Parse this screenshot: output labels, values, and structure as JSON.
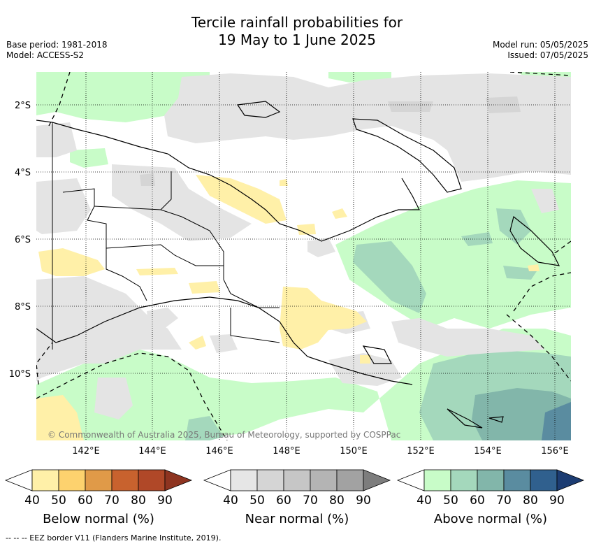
{
  "title_line1": "Tercile rainfall probabilities for",
  "title_line2": "19 May to 1 June 2025",
  "base_period": "Base period: 1981-2018",
  "model": "Model: ACCESS-S2",
  "model_run": "Model run: 05/05/2025",
  "issued": "Issued: 07/05/2025",
  "copyright": "© Commonwealth of Australia 2025, Bureau of Meteorology, supported by COSPPac",
  "lat_labels": [
    "2°S",
    "4°S",
    "6°S",
    "8°S",
    "10°S"
  ],
  "lon_labels": [
    "142°E",
    "144°E",
    "146°E",
    "148°E",
    "150°E",
    "152°E",
    "154°E",
    "156°E"
  ],
  "colorbars": [
    {
      "title": "Below normal (%)",
      "ticks": [
        "40",
        "50",
        "60",
        "70",
        "80",
        "90"
      ],
      "colors": [
        "#ffffff",
        "#fff0a8",
        "#fdd26e",
        "#e09a48",
        "#c8622e",
        "#b04828",
        "#8e3420"
      ]
    },
    {
      "title": "Near normal (%)",
      "ticks": [
        "40",
        "50",
        "60",
        "70",
        "80",
        "90"
      ],
      "colors": [
        "#ffffff",
        "#e6e6e6",
        "#d5d5d5",
        "#c6c6c6",
        "#b4b4b4",
        "#a2a2a2",
        "#7d7d7d"
      ]
    },
    {
      "title": "Above normal (%)",
      "ticks": [
        "40",
        "50",
        "60",
        "70",
        "80",
        "90"
      ],
      "colors": [
        "#ffffff",
        "#c8fcc8",
        "#a4d8bc",
        "#82b6aa",
        "#5a8ca0",
        "#30608e",
        "#1c3c72"
      ]
    }
  ],
  "eez_note": "-- -- -- EEZ border V11 (Flanders Marine Institute, 2019)."
}
